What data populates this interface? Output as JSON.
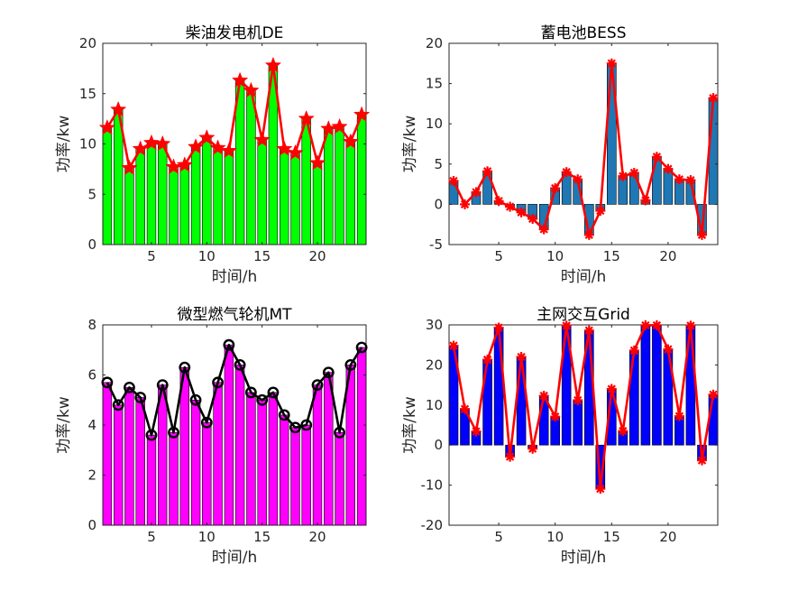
{
  "chart_data": [
    {
      "type": "bar",
      "title": "柴油发电机DE",
      "xlabel": "时间/h",
      "ylabel": "功率/kw",
      "categories": [
        1,
        2,
        3,
        4,
        5,
        6,
        7,
        8,
        9,
        10,
        11,
        12,
        13,
        14,
        15,
        16,
        17,
        18,
        19,
        20,
        21,
        22,
        23,
        24
      ],
      "xlim": [
        0.6,
        24.4
      ],
      "xticks": [
        5,
        10,
        15,
        20
      ],
      "ylim": [
        0,
        20
      ],
      "yticks": [
        0,
        5,
        10,
        15,
        20
      ],
      "values": [
        11.6,
        13.4,
        7.6,
        9.5,
        10.1,
        10.0,
        7.7,
        7.9,
        9.7,
        10.6,
        9.6,
        9.3,
        16.3,
        15.3,
        10.4,
        17.8,
        9.5,
        9.1,
        12.5,
        8.1,
        11.5,
        11.7,
        10.2,
        12.9
      ],
      "bar_color": "#00ff00",
      "line_color": "#ff0000",
      "marker": "star"
    },
    {
      "type": "bar",
      "title": "蓄电池BESS",
      "xlabel": "时间/h",
      "ylabel": "功率/kw",
      "categories": [
        1,
        2,
        3,
        4,
        5,
        6,
        7,
        8,
        9,
        10,
        11,
        12,
        13,
        14,
        15,
        16,
        17,
        18,
        19,
        20,
        21,
        22,
        23,
        24
      ],
      "xlim": [
        0.6,
        24.4
      ],
      "xticks": [
        5,
        10,
        15,
        20
      ],
      "ylim": [
        -5,
        20
      ],
      "yticks": [
        -5,
        0,
        5,
        10,
        15,
        20
      ],
      "values": [
        2.9,
        0.0,
        1.5,
        4.1,
        0.4,
        -0.3,
        -1.0,
        -1.8,
        -3.1,
        2.0,
        4.0,
        3.1,
        -3.8,
        -0.8,
        17.5,
        3.5,
        3.9,
        0.5,
        5.9,
        4.4,
        3.1,
        3.0,
        -3.8,
        13.2
      ],
      "bar_color": "#1f77b4",
      "line_color": "#ff0000",
      "marker": "asterisk"
    },
    {
      "type": "bar",
      "title": "微型燃气轮机MT",
      "xlabel": "时间/h",
      "ylabel": "功率/kw",
      "categories": [
        1,
        2,
        3,
        4,
        5,
        6,
        7,
        8,
        9,
        10,
        11,
        12,
        13,
        14,
        15,
        16,
        17,
        18,
        19,
        20,
        21,
        22,
        23,
        24
      ],
      "xlim": [
        0.6,
        24.4
      ],
      "xticks": [
        5,
        10,
        15,
        20
      ],
      "ylim": [
        0,
        8
      ],
      "yticks": [
        0,
        2,
        4,
        6,
        8
      ],
      "values": [
        5.7,
        4.8,
        5.5,
        5.1,
        3.6,
        5.6,
        3.7,
        6.3,
        5.0,
        4.1,
        5.7,
        7.2,
        6.4,
        5.3,
        5.0,
        5.3,
        4.4,
        3.9,
        4.0,
        5.6,
        6.1,
        3.7,
        6.4,
        7.1
      ],
      "bar_color": "#ff00ff",
      "line_color": "#000000",
      "marker": "circle"
    },
    {
      "type": "bar",
      "title": "主网交互Grid",
      "xlabel": "时间/h",
      "ylabel": "功率/kw",
      "categories": [
        1,
        2,
        3,
        4,
        5,
        6,
        7,
        8,
        9,
        10,
        11,
        12,
        13,
        14,
        15,
        16,
        17,
        18,
        19,
        20,
        21,
        22,
        23,
        24
      ],
      "xlim": [
        0.6,
        24.4
      ],
      "xticks": [
        5,
        10,
        15,
        20
      ],
      "ylim": [
        -20,
        30
      ],
      "yticks": [
        -20,
        -10,
        0,
        10,
        20,
        30
      ],
      "values": [
        24.8,
        9.0,
        3.4,
        21.3,
        29.3,
        -2.9,
        22.0,
        -0.9,
        12.3,
        7.1,
        29.8,
        11.2,
        28.6,
        -10.9,
        14.0,
        3.5,
        23.6,
        29.9,
        29.9,
        23.9,
        7.2,
        29.8,
        -3.8,
        12.6
      ],
      "bar_color": "#0000ff",
      "line_color": "#ff0000",
      "marker": "asterisk"
    }
  ]
}
